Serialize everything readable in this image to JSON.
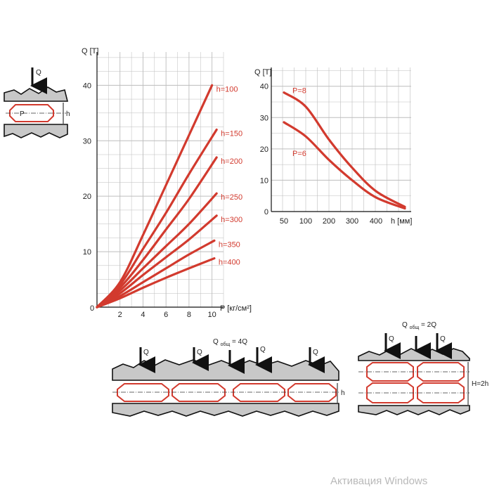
{
  "chart_data": [
    {
      "type": "line",
      "ylabel": "Q [T]",
      "xlabel": "P [кг/см²]",
      "xlim": [
        0,
        11
      ],
      "ylim": [
        0,
        46
      ],
      "xticks": [
        2,
        4,
        6,
        8,
        10
      ],
      "yticks": [
        10,
        20,
        30,
        40
      ],
      "origin_label": "0",
      "grid": true,
      "series": [
        {
          "name": "h=100",
          "x": [
            0,
            2,
            4,
            6,
            8,
            10
          ],
          "y": [
            0,
            4.5,
            13,
            22,
            31,
            40
          ]
        },
        {
          "name": "h=150",
          "x": [
            0,
            2,
            4,
            6,
            8,
            10.4
          ],
          "y": [
            0,
            4,
            10.5,
            17,
            24,
            32
          ]
        },
        {
          "name": "h=200",
          "x": [
            0,
            2,
            4,
            6,
            8,
            10.4
          ],
          "y": [
            0,
            3.5,
            8.5,
            14,
            19.5,
            27
          ]
        },
        {
          "name": "h=250",
          "x": [
            0,
            2,
            4,
            6,
            8,
            10.4
          ],
          "y": [
            0,
            3,
            7,
            11,
            15,
            20.5
          ]
        },
        {
          "name": "h=300",
          "x": [
            0,
            2,
            4,
            6,
            8,
            10.4
          ],
          "y": [
            0,
            2.5,
            5.8,
            9,
            12.2,
            16.5
          ]
        },
        {
          "name": "h=350",
          "x": [
            0,
            2,
            4,
            6,
            8,
            10.2
          ],
          "y": [
            0,
            2,
            4.5,
            7,
            9.5,
            12
          ]
        },
        {
          "name": "h=400",
          "x": [
            0,
            2,
            4,
            6,
            8,
            10.2
          ],
          "y": [
            0,
            1.6,
            3.5,
            5.3,
            7,
            8.8
          ]
        }
      ]
    },
    {
      "type": "line",
      "ylabel": "Q [T]",
      "xlabel": "h [мм]",
      "xticks": [
        "50",
        "100",
        "200",
        "300",
        "400"
      ],
      "yticks": [
        0,
        10,
        20,
        30,
        40
      ],
      "ylim": [
        0,
        46
      ],
      "grid": true,
      "series": [
        {
          "name": "P=8",
          "x": [
            "50",
            "100",
            "200",
            "300",
            "400",
            "500"
          ],
          "y": [
            38,
            33.5,
            23,
            14,
            6.5,
            1.5
          ]
        },
        {
          "name": "P=6",
          "x": [
            "50",
            "100",
            "200",
            "300",
            "400",
            "500"
          ],
          "y": [
            28.5,
            24,
            16.5,
            10,
            4.5,
            1
          ]
        }
      ]
    }
  ],
  "diagrams": {
    "single": {
      "force": "Q",
      "pressure": "P",
      "height": "h"
    },
    "row": {
      "force": "Q",
      "total": "Q",
      "total_sub": "общ",
      "total_value": "= 4Q",
      "height": "h"
    },
    "stack": {
      "force": "Q",
      "total": "Q",
      "total_sub": "общ",
      "total_value": "= 2Q",
      "height": "H=2h"
    }
  },
  "watermark": "Активация Windows",
  "colors": {
    "curve": "#d23a2e",
    "plate": "#c8c8c8",
    "grid": "#bdbdbd"
  }
}
